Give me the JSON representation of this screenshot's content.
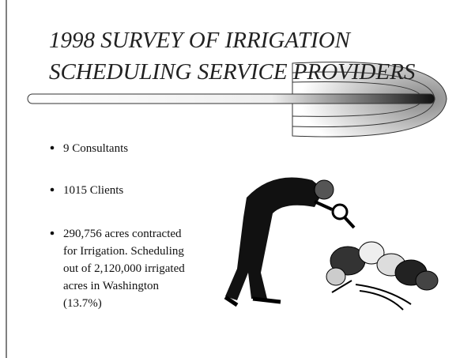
{
  "slide": {
    "title": [
      "1998 SURVEY OF IRRIGATION",
      "SCHEDULING SERVICE PROVIDERS"
    ],
    "bullets": [
      [
        "9 Consultants"
      ],
      [
        "1015 Clients"
      ],
      [
        "290,756 acres contracted",
        "for Irrigation. Scheduling",
        "out of 2,120,000 irrigated",
        "acres in Washington",
        "(13.7%)"
      ]
    ]
  }
}
